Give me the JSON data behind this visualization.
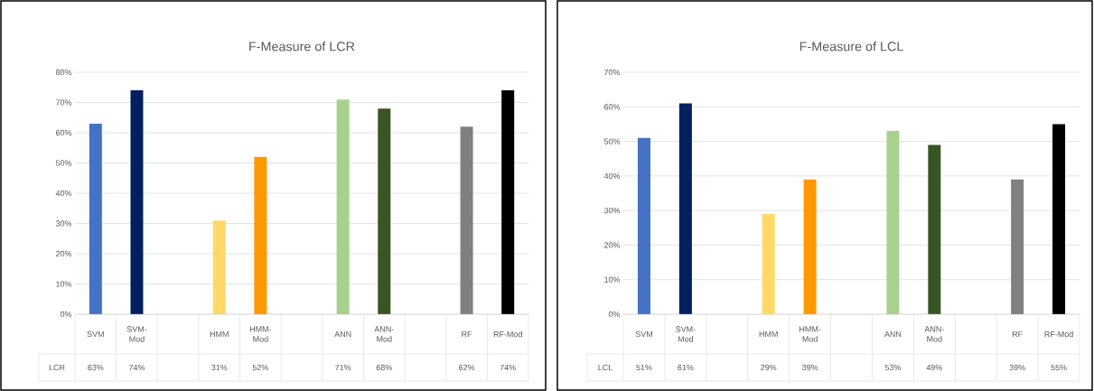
{
  "chart_data": [
    {
      "type": "bar",
      "title": "F-Measure of LCR",
      "categories": [
        "SVM",
        "SVM-Mod",
        null,
        "HMM",
        "HMM-Mod",
        null,
        "ANN",
        "ANN-Mod",
        null,
        "RF",
        "RF-Mod"
      ],
      "series": [
        {
          "name": "LCR",
          "values": [
            63,
            74,
            null,
            31,
            52,
            null,
            71,
            68,
            null,
            62,
            74
          ],
          "colors": [
            "#4472c4",
            "#002060",
            null,
            "#ffd966",
            "#ff9900",
            null,
            "#a9d18e",
            "#375623",
            null,
            "#808080",
            "#000000"
          ],
          "value_labels": [
            "63%",
            "74%",
            null,
            "31%",
            "52%",
            null,
            "71%",
            "68%",
            null,
            "62%",
            "74%"
          ]
        }
      ],
      "ylim": [
        0,
        80
      ],
      "yticks": [
        {
          "value": 0,
          "label": "0%"
        },
        {
          "value": 10,
          "label": "10%"
        },
        {
          "value": 20,
          "label": "20%"
        },
        {
          "value": 30,
          "label": "30%"
        },
        {
          "value": 40,
          "label": "40%"
        },
        {
          "value": 50,
          "label": "50%"
        },
        {
          "value": 60,
          "label": "60%"
        },
        {
          "value": 70,
          "label": "70%"
        },
        {
          "value": 80,
          "label": "80%"
        }
      ],
      "grid": "y"
    },
    {
      "type": "bar",
      "title": "F-Measure of LCL",
      "categories": [
        "SVM",
        "SVM-Mod",
        null,
        "HMM",
        "HMM-Mod",
        null,
        "ANN",
        "ANN-Mod",
        null,
        "RF",
        "RF-Mod"
      ],
      "series": [
        {
          "name": "LCL",
          "values": [
            51,
            61,
            null,
            29,
            39,
            null,
            53,
            49,
            null,
            39,
            55
          ],
          "colors": [
            "#4472c4",
            "#002060",
            null,
            "#ffd966",
            "#ff9900",
            null,
            "#a9d18e",
            "#375623",
            null,
            "#808080",
            "#000000"
          ],
          "value_labels": [
            "51%",
            "61%",
            null,
            "29%",
            "39%",
            null,
            "53%",
            "49%",
            null,
            "39%",
            "55%"
          ]
        }
      ],
      "ylim": [
        0,
        70
      ],
      "yticks": [
        {
          "value": 0,
          "label": "0%"
        },
        {
          "value": 10,
          "label": "10%"
        },
        {
          "value": 20,
          "label": "20%"
        },
        {
          "value": 30,
          "label": "30%"
        },
        {
          "value": 40,
          "label": "40%"
        },
        {
          "value": 50,
          "label": "50%"
        },
        {
          "value": 60,
          "label": "60%"
        },
        {
          "value": 70,
          "label": "70%"
        }
      ],
      "grid": "y"
    }
  ]
}
